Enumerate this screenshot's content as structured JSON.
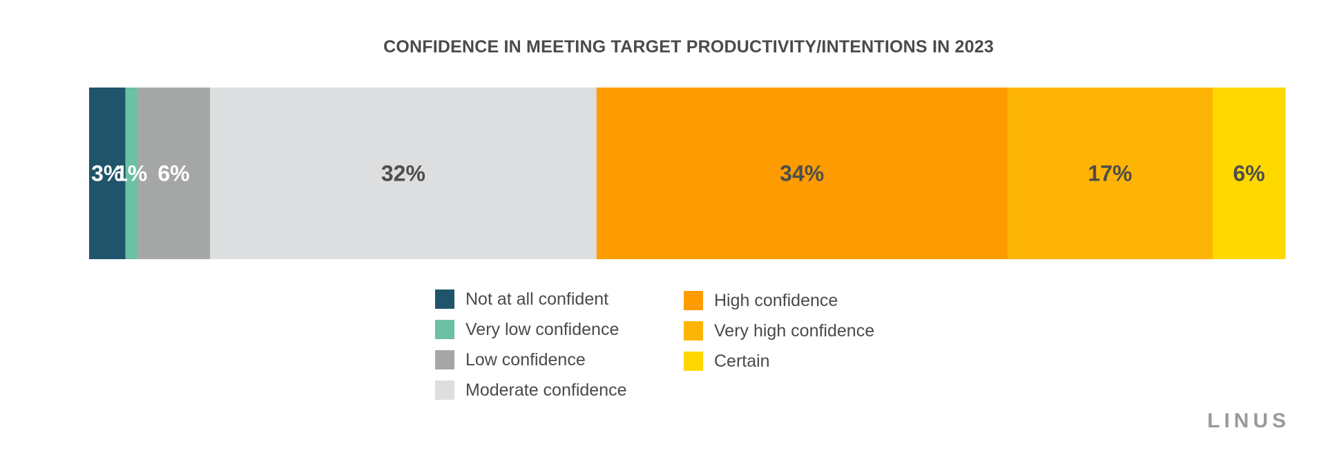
{
  "chart_data": {
    "type": "bar",
    "orientation": "horizontal-stacked-100",
    "title": "CONFIDENCE IN MEETING TARGET PRODUCTIVITY/INTENTIONS IN 2023",
    "series": [
      {
        "name": "Not at all confident",
        "value": 3,
        "label": "3%",
        "color": "#20546b",
        "label_color": "#ffffff"
      },
      {
        "name": "Very low confidence",
        "value": 1,
        "label": "1%",
        "color": "#6cc0a4",
        "label_color": "#ffffff"
      },
      {
        "name": "Low confidence",
        "value": 6,
        "label": "6%",
        "color": "#a5a7a6",
        "label_color": "#ffffff"
      },
      {
        "name": "Moderate confidence",
        "value": 32,
        "label": "32%",
        "color": "#dcdedf",
        "label_color": "#4d4d4d"
      },
      {
        "name": "High confidence",
        "value": 34,
        "label": "34%",
        "color": "#fd9c00",
        "label_color": "#4d4d4d"
      },
      {
        "name": "Very high confidence",
        "value": 17,
        "label": "17%",
        "color": "#fdb404",
        "label_color": "#4d4d4d"
      },
      {
        "name": "Certain",
        "value": 6,
        "label": "6%",
        "color": "#ffd800",
        "label_color": "#4d4d4d"
      }
    ],
    "legend_position": "bottom-center",
    "legend_columns": [
      [
        0,
        1,
        2,
        3
      ],
      [
        4,
        5,
        6
      ]
    ]
  },
  "brand": "LINUS"
}
